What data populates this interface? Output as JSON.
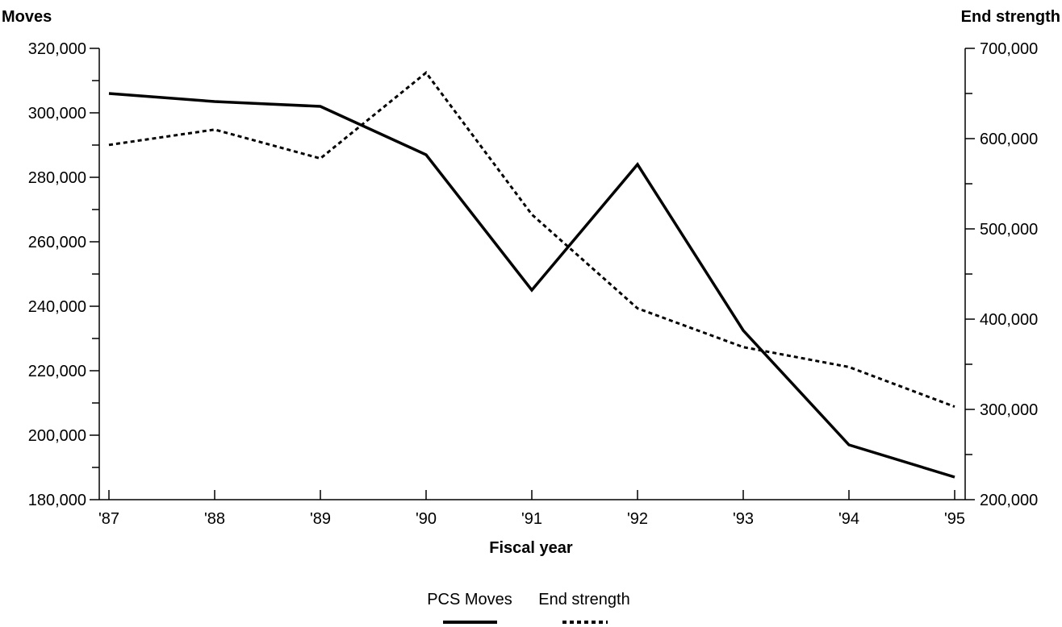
{
  "chart_data": {
    "type": "line",
    "x_title": "Fiscal year",
    "categories": [
      "'87",
      "'88",
      "'89",
      "'90",
      "'91",
      "'92",
      "'93",
      "'94",
      "'95"
    ],
    "y_left": {
      "title": "Moves",
      "min": 180000,
      "max": 320000,
      "major_step": 20000,
      "minor_step": 10000,
      "tick_labels": [
        "180,000",
        "200,000",
        "220,000",
        "240,000",
        "260,000",
        "280,000",
        "300,000",
        "320,000"
      ]
    },
    "y_right": {
      "title": "End strength",
      "min": 200000,
      "max": 700000,
      "major_step": 100000,
      "minor_step": 50000,
      "tick_labels": [
        "200,000",
        "300,000",
        "400,000",
        "500,000",
        "600,000",
        "700,000"
      ]
    },
    "series": [
      {
        "name": "PCS Moves",
        "axis": "left",
        "style": "solid",
        "color": "#000000",
        "values": [
          306000,
          303500,
          302000,
          287000,
          245000,
          284000,
          232500,
          197000,
          187000
        ]
      },
      {
        "name": "End strength",
        "axis": "right",
        "style": "dotted",
        "color": "#000000",
        "values": [
          593000,
          610000,
          578000,
          673000,
          516000,
          412000,
          369000,
          347000,
          303000
        ]
      }
    ],
    "legend_position": "bottom-center",
    "grid": false
  }
}
